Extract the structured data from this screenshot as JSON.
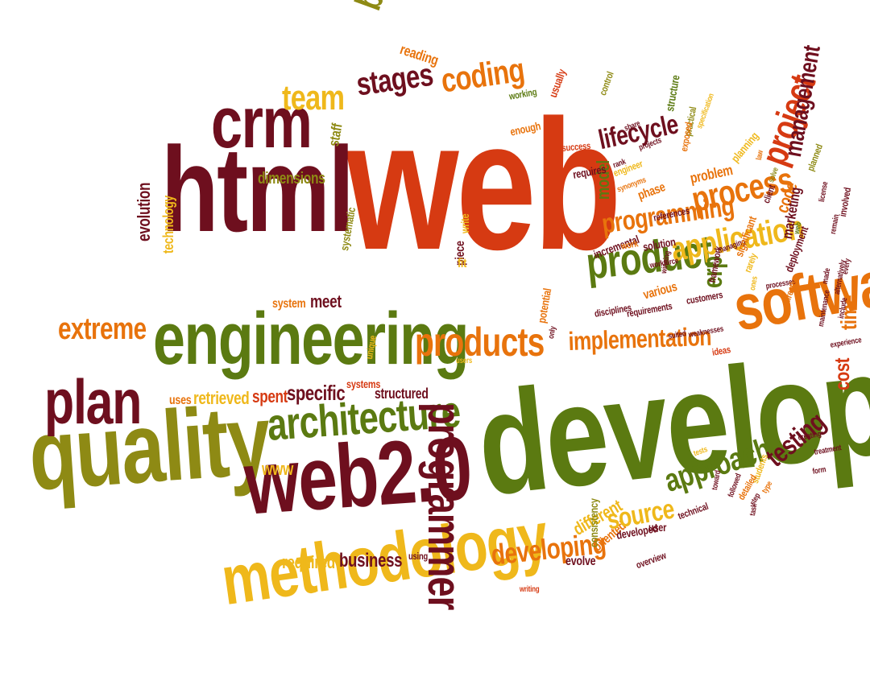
{
  "title": "",
  "palette": {
    "red": "#d63a12",
    "orange": "#e8730c",
    "yellow": "#efb81b",
    "olive": "#5b7a11",
    "khaki": "#8e8a14",
    "maroon": "#6e0f1e"
  },
  "words": [
    {
      "text": "web",
      "color": "red"
    },
    {
      "text": "development",
      "color": "olive"
    },
    {
      "text": "html",
      "color": "maroon"
    },
    {
      "text": "crm",
      "color": "maroon"
    },
    {
      "text": "engineering",
      "color": "olive"
    },
    {
      "text": "quality",
      "color": "khaki"
    },
    {
      "text": "web2.0",
      "color": "maroon"
    },
    {
      "text": "methodology",
      "color": "yellow"
    },
    {
      "text": "plan",
      "color": "maroon"
    },
    {
      "text": "architecture",
      "color": "olive"
    },
    {
      "text": "programmer",
      "color": "maroon"
    },
    {
      "text": "software",
      "color": "orange"
    },
    {
      "text": "products",
      "color": "orange"
    },
    {
      "text": "product",
      "color": "olive"
    },
    {
      "text": "application",
      "color": "yellow"
    },
    {
      "text": "process",
      "color": "orange"
    },
    {
      "text": "programming",
      "color": "orange"
    },
    {
      "text": "implementation",
      "color": "orange"
    },
    {
      "text": "lifecycle",
      "color": "maroon"
    },
    {
      "text": "coding",
      "color": "orange"
    },
    {
      "text": "stages",
      "color": "maroon"
    },
    {
      "text": "team",
      "color": "yellow"
    },
    {
      "text": "best",
      "color": "khaki"
    },
    {
      "text": "reading",
      "color": "orange"
    },
    {
      "text": "dimensions",
      "color": "khaki"
    },
    {
      "text": "staff",
      "color": "khaki"
    },
    {
      "text": "evolution",
      "color": "maroon"
    },
    {
      "text": "technology",
      "color": "yellow"
    },
    {
      "text": "extreme",
      "color": "orange"
    },
    {
      "text": "system",
      "color": "orange"
    },
    {
      "text": "meet",
      "color": "maroon"
    },
    {
      "text": "systematic",
      "color": "khaki"
    },
    {
      "text": "specific",
      "color": "maroon"
    },
    {
      "text": "spent",
      "color": "red"
    },
    {
      "text": "retrieved",
      "color": "yellow"
    },
    {
      "text": "uses",
      "color": "orange"
    },
    {
      "text": "systems",
      "color": "red"
    },
    {
      "text": "structured",
      "color": "maroon"
    },
    {
      "text": "unique",
      "color": "yellow"
    },
    {
      "text": "users",
      "color": "yellow"
    },
    {
      "text": "www",
      "color": "yellow"
    },
    {
      "text": "required",
      "color": "yellow"
    },
    {
      "text": "business",
      "color": "maroon"
    },
    {
      "text": "using",
      "color": "maroon"
    },
    {
      "text": "piece",
      "color": "maroon"
    },
    {
      "text": "fit",
      "color": "yellow"
    },
    {
      "text": "write",
      "color": "yellow"
    },
    {
      "text": "potential",
      "color": "orange"
    },
    {
      "text": "developing",
      "color": "orange"
    },
    {
      "text": "different",
      "color": "yellow"
    },
    {
      "text": "evolve",
      "color": "maroon"
    },
    {
      "text": "oriented",
      "color": "orange"
    },
    {
      "text": "source",
      "color": "yellow"
    },
    {
      "text": "approach",
      "color": "olive"
    },
    {
      "text": "developed",
      "color": "maroon"
    },
    {
      "text": "consistency",
      "color": "khaki"
    },
    {
      "text": "user",
      "color": "maroon"
    },
    {
      "text": "overview",
      "color": "maroon"
    },
    {
      "text": "writing",
      "color": "red"
    },
    {
      "text": "testing",
      "color": "maroon"
    },
    {
      "text": "erp",
      "color": "olive"
    },
    {
      "text": "project",
      "color": "red"
    },
    {
      "text": "management",
      "color": "maroon"
    },
    {
      "text": "code",
      "color": "orange"
    },
    {
      "text": "marketing",
      "color": "maroon"
    },
    {
      "text": "cost",
      "color": "red"
    },
    {
      "text": "time",
      "color": "orange"
    },
    {
      "text": "model",
      "color": "olive"
    },
    {
      "text": "solution",
      "color": "maroon"
    },
    {
      "text": "requirements",
      "color": "maroon"
    },
    {
      "text": "disciplines",
      "color": "maroon"
    },
    {
      "text": "various",
      "color": "orange"
    },
    {
      "text": "customers",
      "color": "maroon"
    },
    {
      "text": "framework",
      "color": "maroon"
    },
    {
      "text": "planning",
      "color": "yellow"
    },
    {
      "text": "problem",
      "color": "orange"
    },
    {
      "text": "phase",
      "color": "orange"
    },
    {
      "text": "references",
      "color": "maroon"
    },
    {
      "text": "incremental",
      "color": "maroon"
    },
    {
      "text": "work",
      "color": "orange"
    },
    {
      "text": "structure",
      "color": "olive"
    },
    {
      "text": "practical",
      "color": "khaki"
    },
    {
      "text": "engineer",
      "color": "yellow"
    },
    {
      "text": "requires",
      "color": "maroon"
    },
    {
      "text": "success",
      "color": "red"
    },
    {
      "text": "enough",
      "color": "orange"
    },
    {
      "text": "working",
      "color": "olive"
    },
    {
      "text": "usually",
      "color": "red"
    },
    {
      "text": "control",
      "color": "khaki"
    },
    {
      "text": "deployment",
      "color": "maroon"
    },
    {
      "text": "ideas",
      "color": "red"
    },
    {
      "text": "client",
      "color": "maroon"
    },
    {
      "text": "students",
      "color": "yellow"
    },
    {
      "text": "detailed",
      "color": "orange"
    },
    {
      "text": "technical",
      "color": "maroon"
    },
    {
      "text": "toward",
      "color": "maroon"
    },
    {
      "text": "tests",
      "color": "yellow"
    },
    {
      "text": "only",
      "color": "maroon"
    },
    {
      "text": "processes",
      "color": "maroon"
    },
    {
      "text": "managing",
      "color": "maroon"
    },
    {
      "text": "workforce",
      "color": "maroon"
    },
    {
      "text": "winning",
      "color": "maroon"
    },
    {
      "text": "synonyms",
      "color": "orange"
    },
    {
      "text": "exposed",
      "color": "orange"
    },
    {
      "text": "specification",
      "color": "yellow"
    },
    {
      "text": "projects",
      "color": "maroon"
    },
    {
      "text": "rank",
      "color": "maroon"
    },
    {
      "text": "share",
      "color": "maroon"
    },
    {
      "text": "weaknesses",
      "color": "maroon"
    },
    {
      "text": "suited",
      "color": "maroon"
    },
    {
      "text": "planned",
      "color": "khaki"
    },
    {
      "text": "directly",
      "color": "orange"
    },
    {
      "text": "significant",
      "color": "orange"
    },
    {
      "text": "rarely",
      "color": "yellow"
    },
    {
      "text": "law",
      "color": "orange"
    },
    {
      "text": "solve",
      "color": "khaki"
    },
    {
      "text": "license",
      "color": "maroon"
    },
    {
      "text": "involved",
      "color": "maroon"
    },
    {
      "text": "remain",
      "color": "maroon"
    },
    {
      "text": "every",
      "color": "maroon"
    },
    {
      "text": "made",
      "color": "maroon"
    },
    {
      "text": "alternatively",
      "color": "maroon"
    },
    {
      "text": "include",
      "color": "maroon"
    },
    {
      "text": "maintenance",
      "color": "maroon"
    },
    {
      "text": "experience",
      "color": "maroon"
    },
    {
      "text": "creating",
      "color": "maroon"
    },
    {
      "text": "ones",
      "color": "yellow"
    },
    {
      "text": "followed",
      "color": "maroon"
    },
    {
      "text": "type",
      "color": "orange"
    },
    {
      "text": "step",
      "color": "maroon"
    },
    {
      "text": "task",
      "color": "maroon"
    },
    {
      "text": "treatment",
      "color": "maroon"
    },
    {
      "text": "form",
      "color": "maroon"
    },
    {
      "text": "web",
      "color": "olive"
    }
  ]
}
